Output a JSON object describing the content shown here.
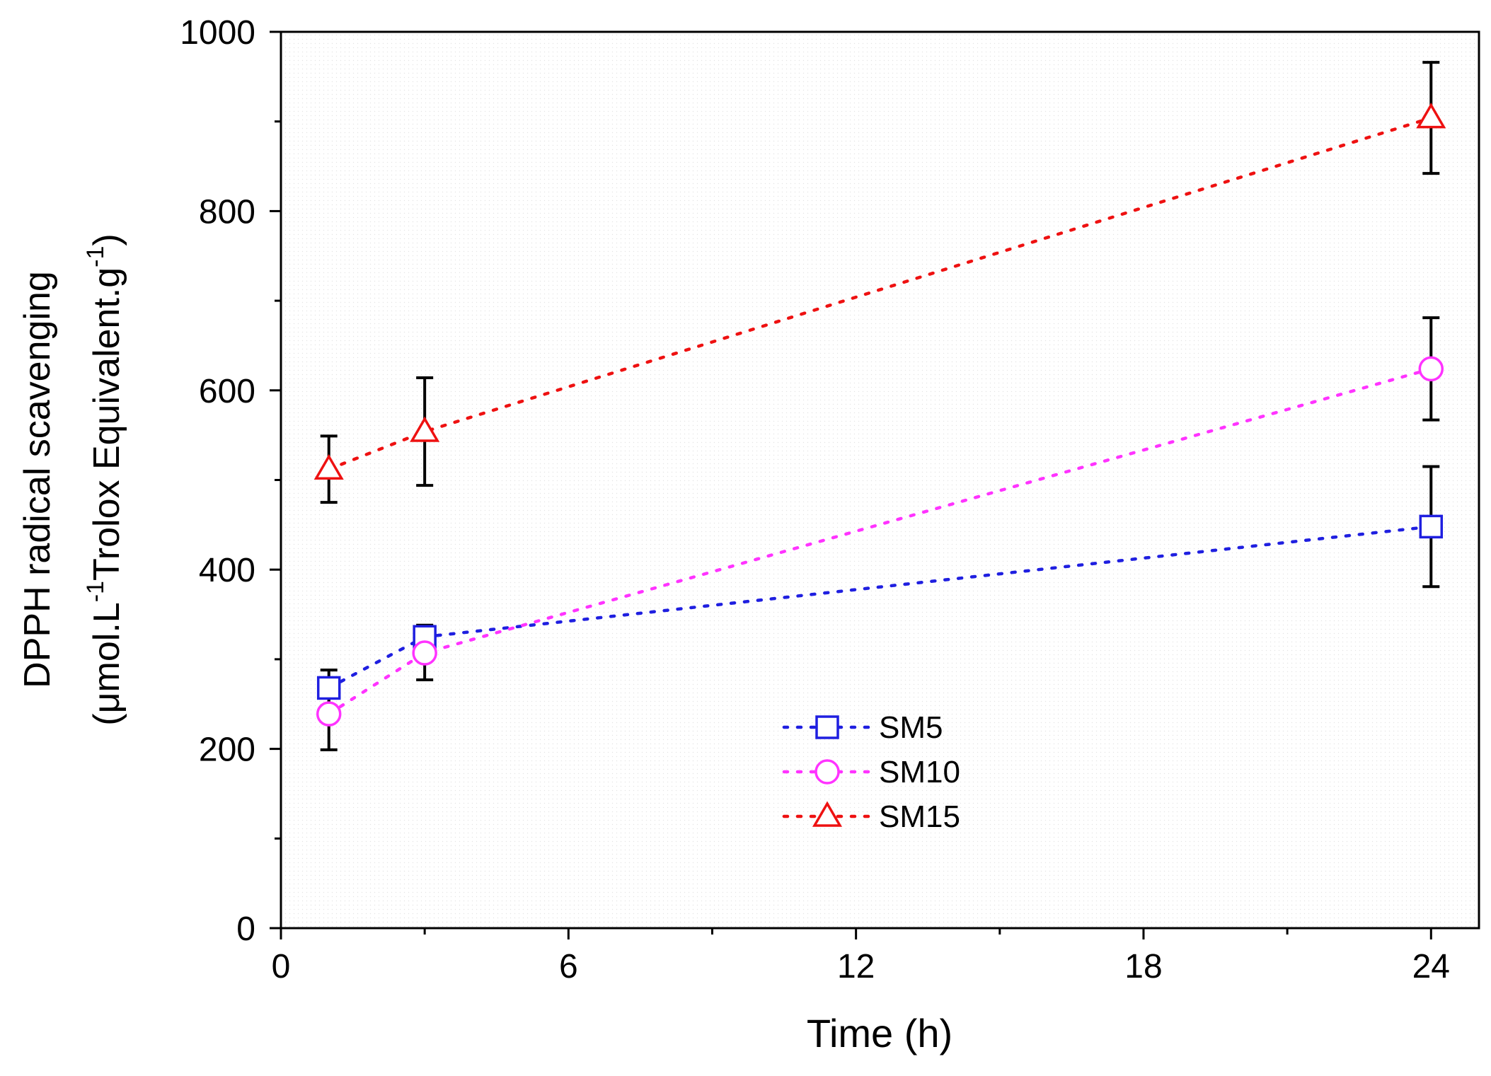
{
  "chart_data": {
    "type": "scatter",
    "title": "",
    "xlabel": "Time (h)",
    "ylabel_line1": "DPPH radical scavenging",
    "ylabel_line2_parts": [
      "(μmol.L",
      "-1",
      "Trolox Equivalent.g",
      "-1",
      ")"
    ],
    "xlim": [
      0,
      25
    ],
    "ylim": [
      0,
      1000
    ],
    "xticks": [
      0,
      6,
      12,
      18,
      24
    ],
    "yticks": [
      0,
      200,
      400,
      600,
      800,
      1000
    ],
    "xticks_minor": [
      3,
      9,
      15,
      21
    ],
    "yticks_minor": [
      100,
      300,
      500,
      700,
      900
    ],
    "grid": false,
    "legend_position": "center",
    "series": [
      {
        "name": "SM5",
        "marker": "square",
        "color": "#1f1fe0",
        "x": [
          1,
          3,
          24
        ],
        "y": [
          268,
          325,
          448
        ],
        "err": [
          20,
          13,
          67
        ]
      },
      {
        "name": "SM10",
        "marker": "circle",
        "color": "#ff33ff",
        "x": [
          1,
          3,
          24
        ],
        "y": [
          239,
          307,
          624
        ],
        "err": [
          40,
          30,
          57
        ]
      },
      {
        "name": "SM15",
        "marker": "triangle",
        "color": "#ee1111",
        "x": [
          1,
          3,
          24
        ],
        "y": [
          512,
          554,
          904
        ],
        "err": [
          37,
          60,
          62
        ]
      }
    ]
  }
}
